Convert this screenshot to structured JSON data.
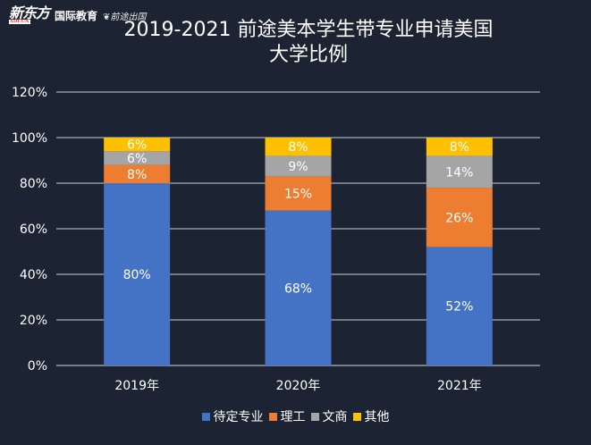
{
  "brand": {
    "logo_text": "新东方",
    "logo_url": "XDF.CN",
    "edu_label": "国际教育",
    "seal_text": "前途出国"
  },
  "chart_data": {
    "type": "bar",
    "stacked": true,
    "title": "2019-2021 前途美本学生带专业申请美国大学比例",
    "categories": [
      "2019年",
      "2020年",
      "2021年"
    ],
    "series": [
      {
        "name": "待定专业",
        "color": "#4472c4",
        "values": [
          80,
          68,
          52
        ],
        "labels": [
          "80%",
          "68%",
          "52%"
        ]
      },
      {
        "name": "理工",
        "color": "#ed7d31",
        "values": [
          8,
          15,
          26
        ],
        "labels": [
          "8%",
          "15%",
          "26%"
        ]
      },
      {
        "name": "文商",
        "color": "#a5a5a5",
        "values": [
          6,
          9,
          14
        ],
        "labels": [
          "6%",
          "9%",
          "14%"
        ]
      },
      {
        "name": "其他",
        "color": "#ffc000",
        "values": [
          6,
          8,
          8
        ],
        "labels": [
          "6%",
          "8%",
          "8%"
        ]
      }
    ],
    "ylim": [
      0,
      120
    ],
    "yticks": [
      "0%",
      "20%",
      "40%",
      "60%",
      "80%",
      "100%",
      "120%"
    ],
    "grid": true,
    "legend_position": "bottom"
  }
}
